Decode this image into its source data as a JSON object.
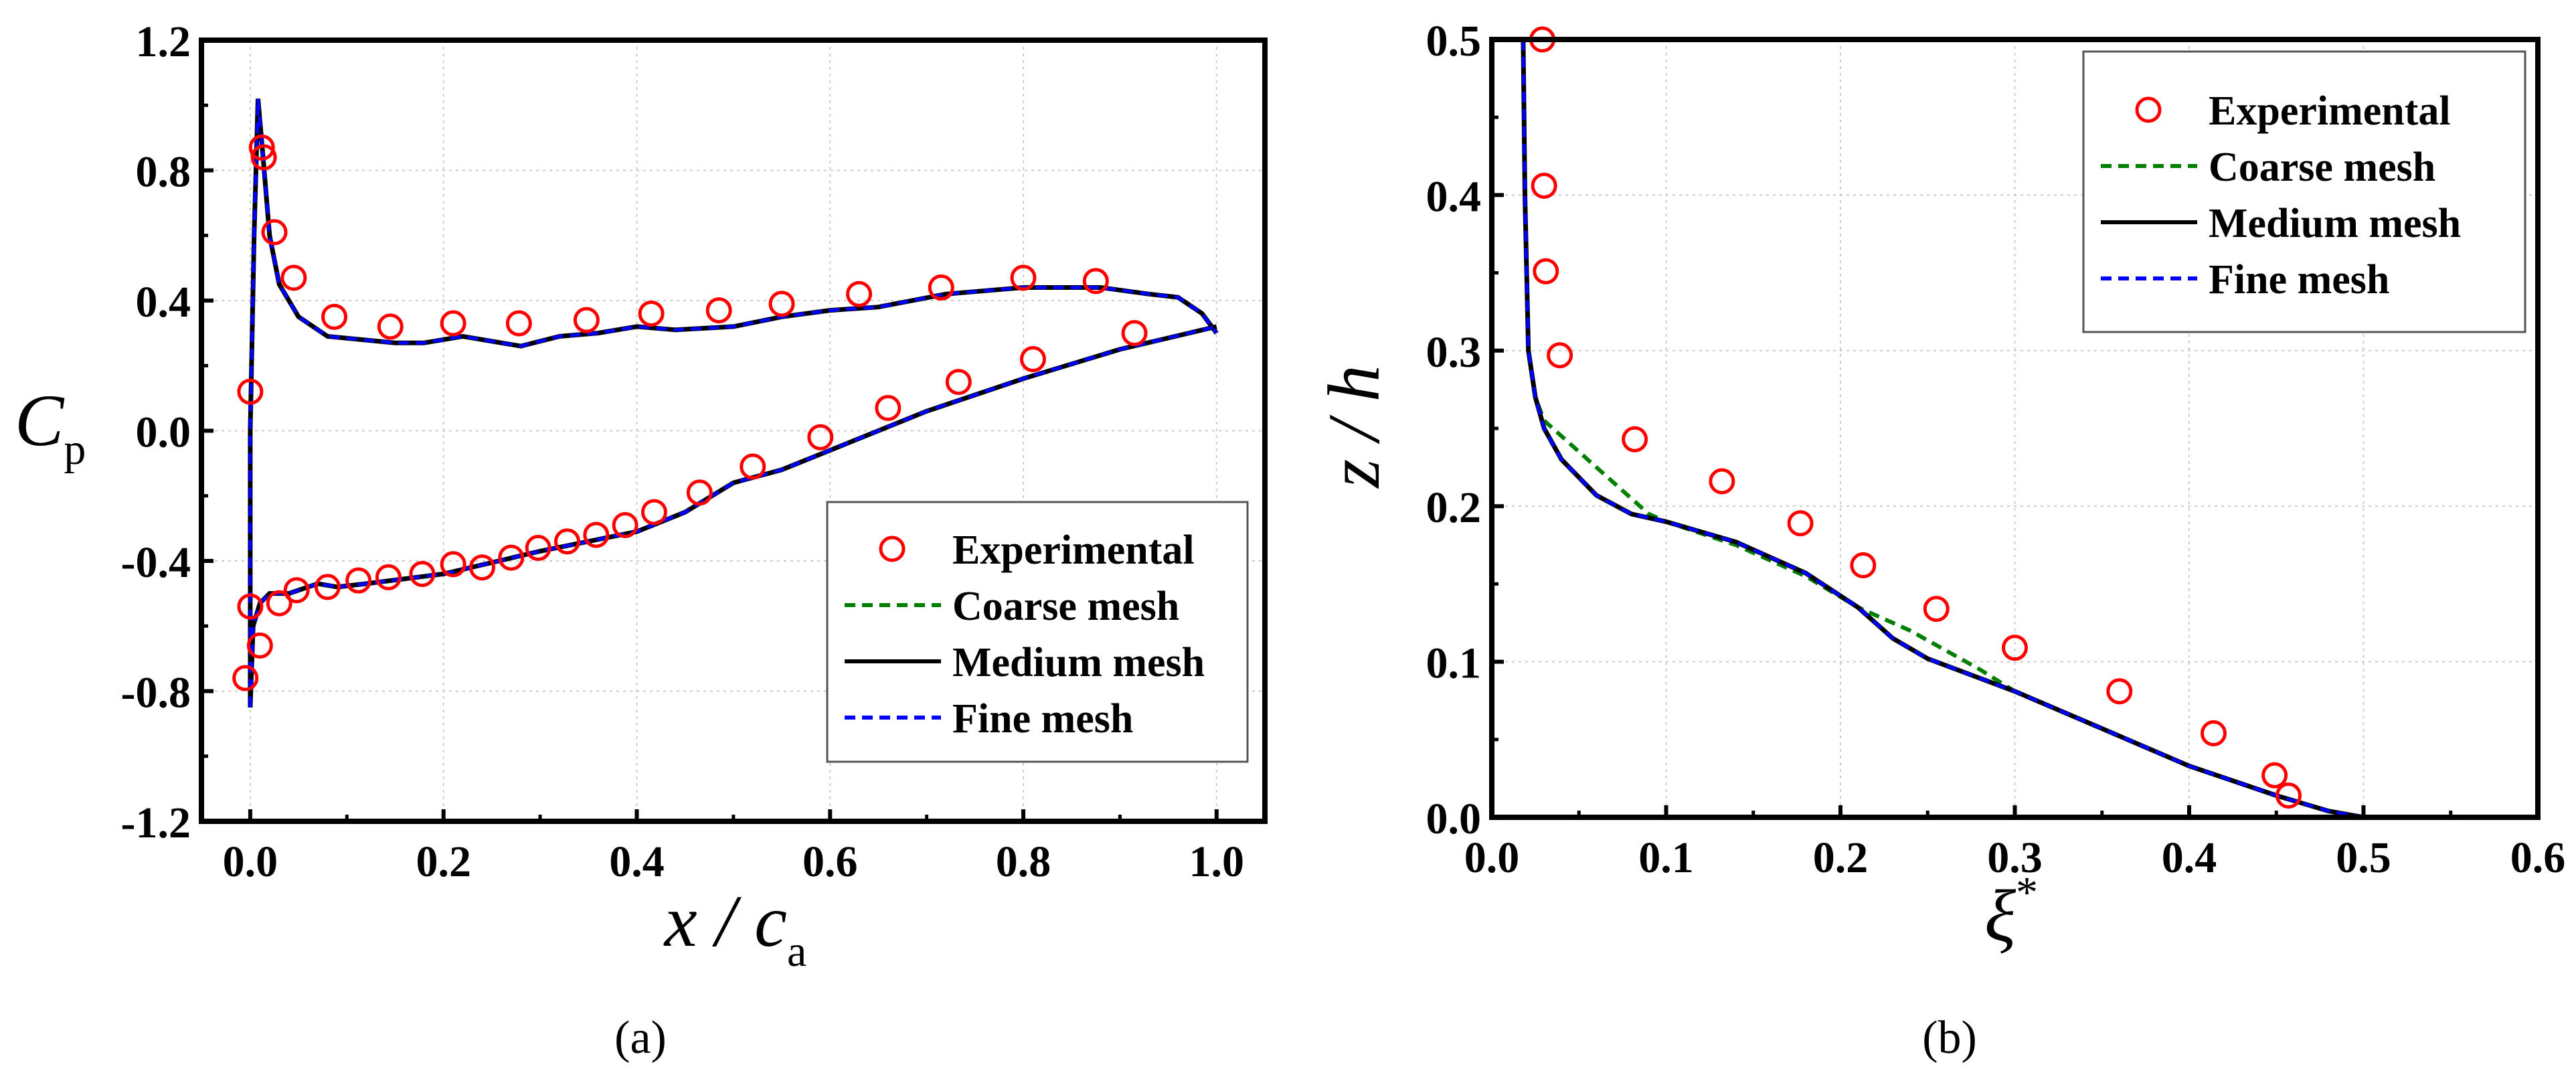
{
  "colors": {
    "experimental": "#ff0000",
    "coarse": "#008000",
    "medium": "#000000",
    "fine": "#0000ff"
  },
  "chart_data": [
    {
      "type": "line",
      "caption": "(a)",
      "xlabel_main": "x / c",
      "xlabel_sub": "a",
      "ylabel_main": "C",
      "ylabel_sub": "p",
      "xlim": [
        -0.04,
        1.05
      ],
      "ylim": [
        -1.2,
        1.2
      ],
      "xticks": [
        "0.0",
        "0.2",
        "0.4",
        "0.6",
        "0.8",
        "1.0"
      ],
      "yticks": [
        "1.2",
        "0.8",
        "0.4",
        "0.0",
        "-0.4",
        "-0.8",
        "-1.2"
      ],
      "grid": true,
      "legend_position": "bottom-right",
      "legend": [
        "Experimental",
        "Coarse mesh",
        "Medium mesh",
        "Fine mesh"
      ],
      "experimental": [
        [
          -0.005,
          -0.76
        ],
        [
          0.0,
          -0.54
        ],
        [
          0.0,
          0.12
        ],
        [
          0.01,
          -0.66
        ],
        [
          0.012,
          0.87
        ],
        [
          0.014,
          0.84
        ],
        [
          0.025,
          0.61
        ],
        [
          0.045,
          0.47
        ],
        [
          0.087,
          0.35
        ],
        [
          0.145,
          0.32
        ],
        [
          0.21,
          0.33
        ],
        [
          0.278,
          0.33
        ],
        [
          0.348,
          0.34
        ],
        [
          0.415,
          0.36
        ],
        [
          0.485,
          0.37
        ],
        [
          0.55,
          0.39
        ],
        [
          0.63,
          0.42
        ],
        [
          0.715,
          0.44
        ],
        [
          0.8,
          0.47
        ],
        [
          0.875,
          0.46
        ],
        [
          0.915,
          0.3
        ],
        [
          0.81,
          0.22
        ],
        [
          0.733,
          0.15
        ],
        [
          0.66,
          0.07
        ],
        [
          0.59,
          -0.02
        ],
        [
          0.52,
          -0.11
        ],
        [
          0.465,
          -0.19
        ],
        [
          0.418,
          -0.25
        ],
        [
          0.388,
          -0.29
        ],
        [
          0.358,
          -0.32
        ],
        [
          0.328,
          -0.34
        ],
        [
          0.298,
          -0.36
        ],
        [
          0.27,
          -0.39
        ],
        [
          0.24,
          -0.42
        ],
        [
          0.21,
          -0.41
        ],
        [
          0.178,
          -0.44
        ],
        [
          0.143,
          -0.45
        ],
        [
          0.112,
          -0.46
        ],
        [
          0.08,
          -0.48
        ],
        [
          0.048,
          -0.49
        ],
        [
          0.03,
          -0.53
        ]
      ],
      "series": [
        {
          "name": "Medium mesh",
          "upper": [
            [
              0,
              -0.85
            ],
            [
              0,
              0
            ],
            [
              0.004,
              0.6
            ],
            [
              0.008,
              1.02
            ],
            [
              0.013,
              0.85
            ],
            [
              0.02,
              0.6
            ],
            [
              0.03,
              0.45
            ],
            [
              0.05,
              0.35
            ],
            [
              0.08,
              0.29
            ],
            [
              0.15,
              0.27
            ],
            [
              0.18,
              0.27
            ],
            [
              0.22,
              0.29
            ],
            [
              0.28,
              0.26
            ],
            [
              0.32,
              0.29
            ],
            [
              0.36,
              0.3
            ],
            [
              0.4,
              0.32
            ],
            [
              0.44,
              0.31
            ],
            [
              0.5,
              0.32
            ],
            [
              0.55,
              0.35
            ],
            [
              0.6,
              0.37
            ],
            [
              0.65,
              0.38
            ],
            [
              0.72,
              0.42
            ],
            [
              0.8,
              0.44
            ],
            [
              0.88,
              0.44
            ],
            [
              0.93,
              0.42
            ],
            [
              0.96,
              0.41
            ],
            [
              0.985,
              0.36
            ],
            [
              1.0,
              0.3
            ]
          ],
          "lower": [
            [
              0,
              -0.85
            ],
            [
              0.003,
              -0.6
            ],
            [
              0.01,
              -0.53
            ],
            [
              0.02,
              -0.5
            ],
            [
              0.04,
              -0.5
            ],
            [
              0.07,
              -0.47
            ],
            [
              0.09,
              -0.48
            ],
            [
              0.12,
              -0.47
            ],
            [
              0.2,
              -0.44
            ],
            [
              0.3,
              -0.37
            ],
            [
              0.35,
              -0.34
            ],
            [
              0.4,
              -0.31
            ],
            [
              0.45,
              -0.25
            ],
            [
              0.5,
              -0.16
            ],
            [
              0.55,
              -0.12
            ],
            [
              0.6,
              -0.06
            ],
            [
              0.7,
              0.06
            ],
            [
              0.8,
              0.16
            ],
            [
              0.9,
              0.25
            ],
            [
              1.0,
              0.32
            ]
          ]
        }
      ]
    },
    {
      "type": "line",
      "caption": "(b)",
      "xlabel_main": "ξ",
      "xlabel_sup": "*",
      "ylabel_main": "z / h",
      "xlim": [
        0,
        0.6
      ],
      "ylim": [
        0,
        0.5
      ],
      "xticks": [
        "0.0",
        "0.1",
        "0.2",
        "0.3",
        "0.4",
        "0.5",
        "0.6"
      ],
      "yticks": [
        "0.5",
        "0.4",
        "0.3",
        "0.2",
        "0.1",
        "0.0"
      ],
      "grid": true,
      "legend_position": "top-right",
      "legend": [
        "Experimental",
        "Coarse mesh",
        "Medium mesh",
        "Fine mesh"
      ],
      "experimental": [
        [
          0.029,
          0.5
        ],
        [
          0.03,
          0.406
        ],
        [
          0.031,
          0.351
        ],
        [
          0.039,
          0.297
        ],
        [
          0.082,
          0.243
        ],
        [
          0.132,
          0.216
        ],
        [
          0.177,
          0.189
        ],
        [
          0.213,
          0.162
        ],
        [
          0.255,
          0.134
        ],
        [
          0.3,
          0.109
        ],
        [
          0.36,
          0.081
        ],
        [
          0.414,
          0.054
        ],
        [
          0.449,
          0.027
        ],
        [
          0.457,
          0.014
        ]
      ],
      "series": [
        {
          "name": "Medium mesh",
          "values": [
            [
              0.018,
              0.5
            ],
            [
              0.019,
              0.4
            ],
            [
              0.021,
              0.3
            ],
            [
              0.025,
              0.27
            ],
            [
              0.03,
              0.25
            ],
            [
              0.04,
              0.23
            ],
            [
              0.06,
              0.207
            ],
            [
              0.08,
              0.195
            ],
            [
              0.1,
              0.19
            ],
            [
              0.14,
              0.177
            ],
            [
              0.18,
              0.157
            ],
            [
              0.21,
              0.135
            ],
            [
              0.23,
              0.115
            ],
            [
              0.25,
              0.102
            ],
            [
              0.3,
              0.081
            ],
            [
              0.35,
              0.057
            ],
            [
              0.4,
              0.033
            ],
            [
              0.45,
              0.014
            ],
            [
              0.48,
              0.004
            ],
            [
              0.5,
              0.0
            ]
          ]
        },
        {
          "name": "Coarse mesh",
          "values": [
            [
              0.018,
              0.5
            ],
            [
              0.019,
              0.4
            ],
            [
              0.021,
              0.3
            ],
            [
              0.025,
              0.27
            ],
            [
              0.03,
              0.255
            ],
            [
              0.05,
              0.235
            ],
            [
              0.07,
              0.215
            ],
            [
              0.09,
              0.195
            ],
            [
              0.1,
              0.19
            ],
            [
              0.14,
              0.175
            ],
            [
              0.18,
              0.155
            ],
            [
              0.21,
              0.135
            ],
            [
              0.24,
              0.12
            ],
            [
              0.28,
              0.095
            ],
            [
              0.3,
              0.081
            ],
            [
              0.35,
              0.057
            ],
            [
              0.4,
              0.033
            ],
            [
              0.45,
              0.014
            ],
            [
              0.48,
              0.004
            ],
            [
              0.5,
              0.0
            ]
          ]
        }
      ]
    }
  ]
}
